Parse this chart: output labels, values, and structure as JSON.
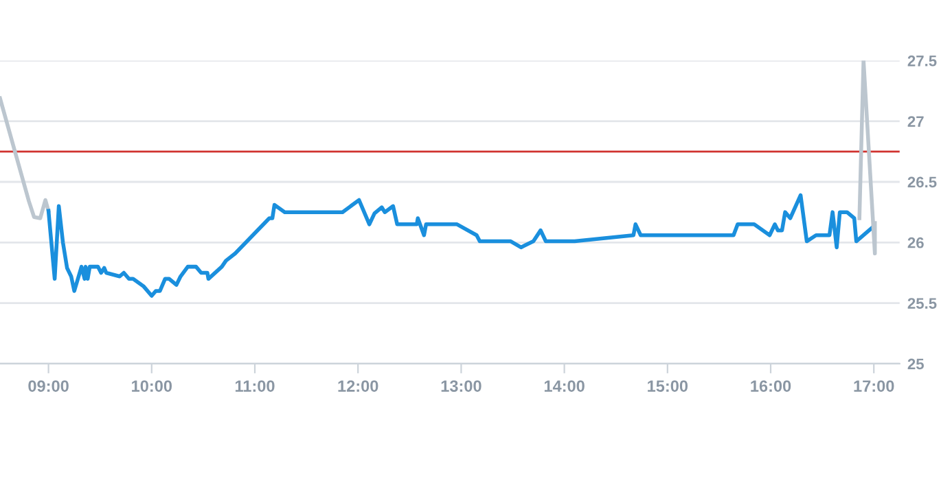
{
  "chart_data": {
    "type": "line",
    "grid": "y",
    "legend": false,
    "marker": "none",
    "line_style": "solid",
    "xlim": [
      8.53,
      17.25
    ],
    "ylim": [
      25,
      27.5
    ],
    "xticks": [
      {
        "value": 9,
        "label": "09:00"
      },
      {
        "value": 10,
        "label": "10:00"
      },
      {
        "value": 11,
        "label": "11:00"
      },
      {
        "value": 12,
        "label": "12:00"
      },
      {
        "value": 13,
        "label": "13:00"
      },
      {
        "value": 14,
        "label": "14:00"
      },
      {
        "value": 15,
        "label": "15:00"
      },
      {
        "value": 16,
        "label": "16:00"
      },
      {
        "value": 17,
        "label": "17:00"
      }
    ],
    "yticks": [
      25,
      25.5,
      26,
      26.5,
      27,
      27.5
    ],
    "ref_lines": [
      {
        "axis": "y",
        "value": 26.75,
        "color": "#d0312d"
      }
    ],
    "series": [
      {
        "color": "#bcc6cf",
        "x": [
          8.53,
          8.81,
          8.86,
          8.92,
          8.97,
          9.0
        ],
        "values": [
          27.19,
          26.34,
          26.21,
          26.2,
          26.35,
          26.26
        ]
      },
      {
        "color": "#1a8fdd",
        "x": [
          9.0,
          9.06,
          9.1,
          9.14,
          9.18,
          9.22,
          9.25,
          9.32,
          9.35,
          9.36,
          9.38,
          9.4,
          9.48,
          9.51,
          9.54,
          9.56,
          9.69,
          9.73,
          9.78,
          9.82,
          9.92,
          10.0,
          10.04,
          10.08,
          10.13,
          10.17,
          10.24,
          10.28,
          10.35,
          10.43,
          10.48,
          10.54,
          10.55,
          10.68,
          10.72,
          10.81,
          11.14,
          11.17,
          11.19,
          11.29,
          11.85,
          12.01,
          12.11,
          12.16,
          12.23,
          12.26,
          12.34,
          12.38,
          12.57,
          12.58,
          12.64,
          12.66,
          12.96,
          13.15,
          13.18,
          13.48,
          13.58,
          13.7,
          13.77,
          13.82,
          14.1,
          14.67,
          14.69,
          14.74,
          15.64,
          15.68,
          15.84,
          15.99,
          16.04,
          16.07,
          16.11,
          16.14,
          16.19,
          16.29,
          16.35,
          16.44,
          16.57,
          16.6,
          16.64,
          16.67,
          16.74,
          16.81,
          16.83,
          16.98
        ],
        "values": [
          26.26,
          25.7,
          26.3,
          26.0,
          25.79,
          25.72,
          25.6,
          25.8,
          25.7,
          25.8,
          25.7,
          25.8,
          25.8,
          25.75,
          25.79,
          25.75,
          25.72,
          25.75,
          25.7,
          25.7,
          25.64,
          25.56,
          25.6,
          25.6,
          25.7,
          25.7,
          25.65,
          25.72,
          25.8,
          25.8,
          25.75,
          25.75,
          25.7,
          25.8,
          25.85,
          25.91,
          26.2,
          26.2,
          26.31,
          26.25,
          26.25,
          26.35,
          26.15,
          26.24,
          26.29,
          26.25,
          26.3,
          26.15,
          26.15,
          26.2,
          26.06,
          26.15,
          26.15,
          26.06,
          26.01,
          26.01,
          25.96,
          26.01,
          26.1,
          26.01,
          26.01,
          26.06,
          26.15,
          26.06,
          26.06,
          26.15,
          26.15,
          26.06,
          26.15,
          26.1,
          26.1,
          26.25,
          26.2,
          26.39,
          26.01,
          26.06,
          26.06,
          26.25,
          25.96,
          26.25,
          26.25,
          26.2,
          26.01,
          26.12
        ]
      },
      {
        "color": "#bcc6cf",
        "x": [
          16.86,
          16.9,
          17.01,
          17.01
        ],
        "values": [
          26.2,
          27.5,
          25.91,
          26.16
        ]
      }
    ]
  }
}
